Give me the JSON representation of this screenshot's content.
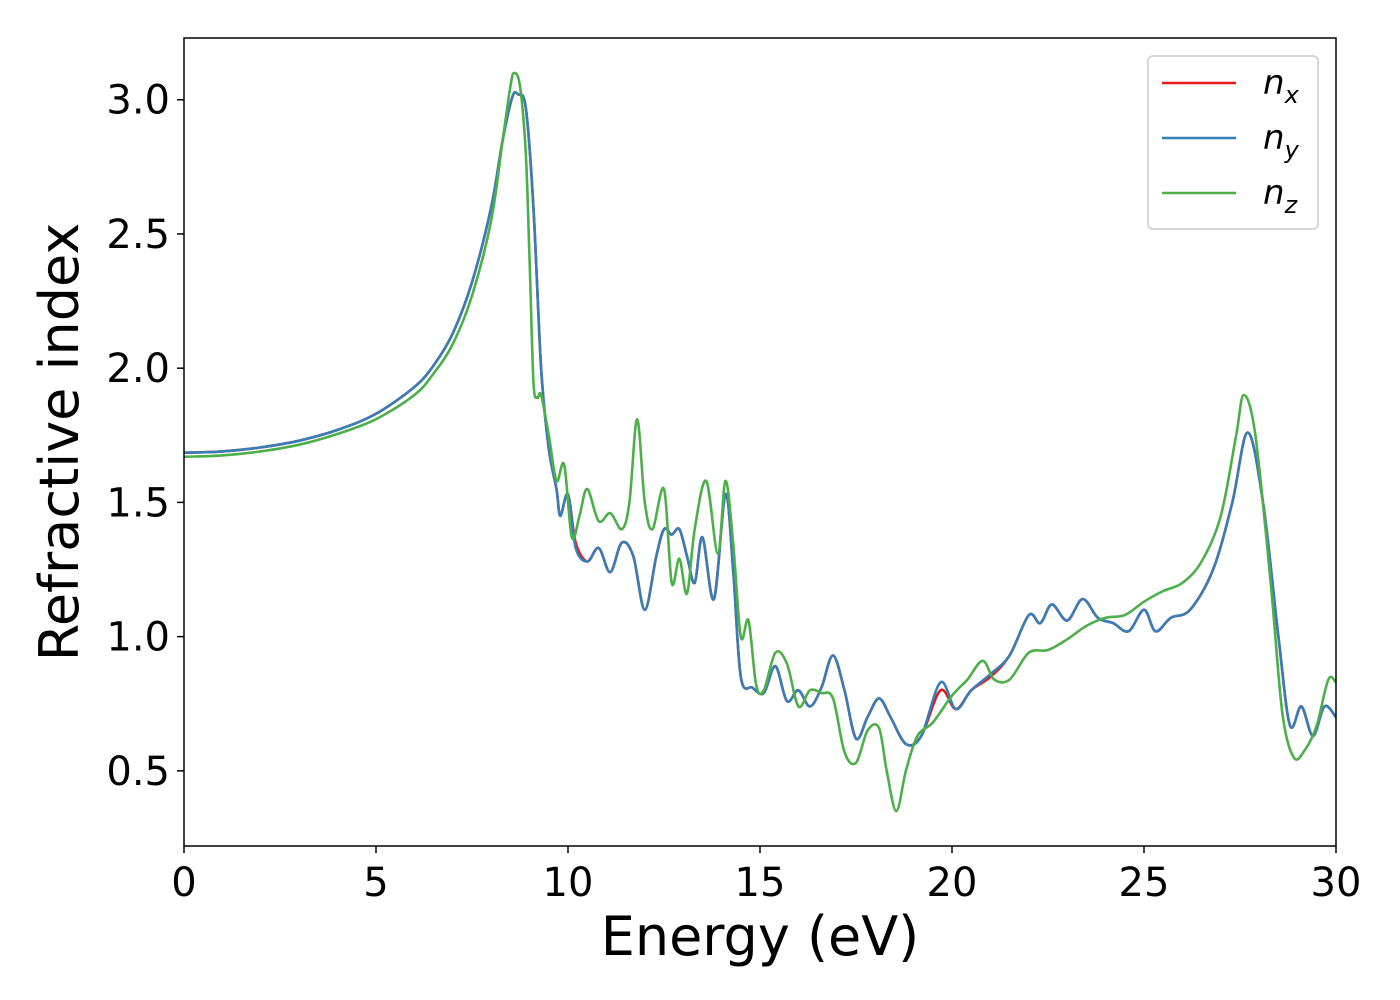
{
  "chart_data": {
    "type": "line",
    "xlabel": "Energy (eV)",
    "ylabel": "Refractive index",
    "xlim": [
      0,
      30
    ],
    "ylim": [
      0.22,
      3.23
    ],
    "xticks": [
      0,
      5,
      10,
      15,
      20,
      25,
      30
    ],
    "xtick_labels": [
      "0",
      "5",
      "10",
      "15",
      "20",
      "25",
      "30"
    ],
    "yticks": [
      0.5,
      1.0,
      1.5,
      2.0,
      2.5,
      3.0
    ],
    "ytick_labels": [
      "0.5",
      "1.0",
      "1.5",
      "2.0",
      "2.5",
      "3.0"
    ],
    "grid": false,
    "legend_position": "top-right",
    "series": [
      {
        "name": "n",
        "subscript": "x",
        "color": "#e41a1c",
        "points": [
          [
            0,
            1.685
          ],
          [
            1,
            1.69
          ],
          [
            2,
            1.705
          ],
          [
            3,
            1.73
          ],
          [
            4,
            1.77
          ],
          [
            5,
            1.83
          ],
          [
            6,
            1.93
          ],
          [
            6.5,
            2.01
          ],
          [
            7,
            2.13
          ],
          [
            7.5,
            2.32
          ],
          [
            8,
            2.6
          ],
          [
            8.3,
            2.85
          ],
          [
            8.55,
            3.01
          ],
          [
            8.7,
            3.02
          ],
          [
            8.9,
            2.97
          ],
          [
            9.1,
            2.6
          ],
          [
            9.3,
            2.0
          ],
          [
            9.5,
            1.7
          ],
          [
            9.7,
            1.55
          ],
          [
            9.8,
            1.45
          ],
          [
            10,
            1.53
          ],
          [
            10.2,
            1.35
          ],
          [
            10.5,
            1.28
          ],
          [
            10.8,
            1.33
          ],
          [
            11.1,
            1.24
          ],
          [
            11.4,
            1.35
          ],
          [
            11.7,
            1.3
          ],
          [
            12,
            1.1
          ],
          [
            12.3,
            1.3
          ],
          [
            12.5,
            1.4
          ],
          [
            12.7,
            1.38
          ],
          [
            12.9,
            1.4
          ],
          [
            13.1,
            1.3
          ],
          [
            13.3,
            1.2
          ],
          [
            13.5,
            1.37
          ],
          [
            13.8,
            1.14
          ],
          [
            14.1,
            1.53
          ],
          [
            14.3,
            1.25
          ],
          [
            14.5,
            0.85
          ],
          [
            14.8,
            0.81
          ],
          [
            15.1,
            0.79
          ],
          [
            15.4,
            0.89
          ],
          [
            15.7,
            0.76
          ],
          [
            16,
            0.8
          ],
          [
            16.3,
            0.74
          ],
          [
            16.6,
            0.81
          ],
          [
            16.9,
            0.93
          ],
          [
            17.2,
            0.8
          ],
          [
            17.5,
            0.62
          ],
          [
            17.8,
            0.7
          ],
          [
            18.1,
            0.77
          ],
          [
            18.4,
            0.7
          ],
          [
            18.8,
            0.6
          ],
          [
            19.2,
            0.63
          ],
          [
            19.7,
            0.8
          ],
          [
            20.1,
            0.73
          ],
          [
            20.5,
            0.8
          ],
          [
            21,
            0.85
          ],
          [
            21.5,
            0.93
          ],
          [
            22,
            1.08
          ],
          [
            22.3,
            1.05
          ],
          [
            22.6,
            1.12
          ],
          [
            23,
            1.06
          ],
          [
            23.4,
            1.14
          ],
          [
            23.8,
            1.07
          ],
          [
            24.2,
            1.05
          ],
          [
            24.6,
            1.02
          ],
          [
            25,
            1.1
          ],
          [
            25.3,
            1.02
          ],
          [
            25.7,
            1.07
          ],
          [
            26.2,
            1.1
          ],
          [
            26.8,
            1.25
          ],
          [
            27.3,
            1.5
          ],
          [
            27.7,
            1.76
          ],
          [
            28.1,
            1.5
          ],
          [
            28.5,
            1.0
          ],
          [
            28.8,
            0.67
          ],
          [
            29.1,
            0.74
          ],
          [
            29.4,
            0.63
          ],
          [
            29.7,
            0.74
          ],
          [
            30,
            0.7
          ]
        ]
      },
      {
        "name": "n",
        "subscript": "y",
        "color": "#377eb8",
        "points": [
          [
            0,
            1.685
          ],
          [
            1,
            1.69
          ],
          [
            2,
            1.705
          ],
          [
            3,
            1.73
          ],
          [
            4,
            1.77
          ],
          [
            5,
            1.83
          ],
          [
            6,
            1.93
          ],
          [
            6.5,
            2.01
          ],
          [
            7,
            2.13
          ],
          [
            7.5,
            2.32
          ],
          [
            8,
            2.6
          ],
          [
            8.3,
            2.85
          ],
          [
            8.55,
            3.01
          ],
          [
            8.7,
            3.02
          ],
          [
            8.9,
            2.97
          ],
          [
            9.1,
            2.6
          ],
          [
            9.3,
            2.0
          ],
          [
            9.5,
            1.7
          ],
          [
            9.7,
            1.55
          ],
          [
            9.8,
            1.45
          ],
          [
            10,
            1.53
          ],
          [
            10.2,
            1.33
          ],
          [
            10.5,
            1.28
          ],
          [
            10.8,
            1.33
          ],
          [
            11.1,
            1.24
          ],
          [
            11.4,
            1.35
          ],
          [
            11.7,
            1.3
          ],
          [
            12,
            1.1
          ],
          [
            12.3,
            1.3
          ],
          [
            12.5,
            1.4
          ],
          [
            12.7,
            1.38
          ],
          [
            12.9,
            1.4
          ],
          [
            13.1,
            1.3
          ],
          [
            13.3,
            1.2
          ],
          [
            13.5,
            1.37
          ],
          [
            13.8,
            1.14
          ],
          [
            14.1,
            1.53
          ],
          [
            14.3,
            1.25
          ],
          [
            14.5,
            0.85
          ],
          [
            14.8,
            0.81
          ],
          [
            15.1,
            0.79
          ],
          [
            15.4,
            0.89
          ],
          [
            15.7,
            0.76
          ],
          [
            16,
            0.8
          ],
          [
            16.3,
            0.74
          ],
          [
            16.6,
            0.81
          ],
          [
            16.9,
            0.93
          ],
          [
            17.2,
            0.8
          ],
          [
            17.5,
            0.62
          ],
          [
            17.8,
            0.7
          ],
          [
            18.1,
            0.77
          ],
          [
            18.4,
            0.7
          ],
          [
            18.8,
            0.6
          ],
          [
            19.2,
            0.63
          ],
          [
            19.7,
            0.83
          ],
          [
            20.1,
            0.73
          ],
          [
            20.5,
            0.8
          ],
          [
            21,
            0.86
          ],
          [
            21.5,
            0.93
          ],
          [
            22,
            1.08
          ],
          [
            22.3,
            1.05
          ],
          [
            22.6,
            1.12
          ],
          [
            23,
            1.06
          ],
          [
            23.4,
            1.14
          ],
          [
            23.8,
            1.07
          ],
          [
            24.2,
            1.05
          ],
          [
            24.6,
            1.02
          ],
          [
            25,
            1.1
          ],
          [
            25.3,
            1.02
          ],
          [
            25.7,
            1.07
          ],
          [
            26.2,
            1.1
          ],
          [
            26.8,
            1.25
          ],
          [
            27.3,
            1.5
          ],
          [
            27.7,
            1.76
          ],
          [
            28.1,
            1.5
          ],
          [
            28.5,
            1.0
          ],
          [
            28.8,
            0.67
          ],
          [
            29.1,
            0.74
          ],
          [
            29.4,
            0.63
          ],
          [
            29.7,
            0.74
          ],
          [
            30,
            0.7
          ]
        ]
      },
      {
        "name": "n",
        "subscript": "z",
        "color": "#4daf4a",
        "points": [
          [
            0,
            1.67
          ],
          [
            1,
            1.675
          ],
          [
            2,
            1.69
          ],
          [
            3,
            1.715
          ],
          [
            4,
            1.755
          ],
          [
            5,
            1.81
          ],
          [
            6,
            1.9
          ],
          [
            6.5,
            1.98
          ],
          [
            7,
            2.09
          ],
          [
            7.5,
            2.27
          ],
          [
            8,
            2.55
          ],
          [
            8.3,
            2.85
          ],
          [
            8.5,
            3.05
          ],
          [
            8.6,
            3.1
          ],
          [
            8.75,
            3.05
          ],
          [
            8.9,
            2.8
          ],
          [
            9.0,
            2.4
          ],
          [
            9.1,
            1.95
          ],
          [
            9.2,
            1.89
          ],
          [
            9.3,
            1.9
          ],
          [
            9.5,
            1.75
          ],
          [
            9.7,
            1.58
          ],
          [
            9.9,
            1.64
          ],
          [
            10.1,
            1.37
          ],
          [
            10.3,
            1.45
          ],
          [
            10.5,
            1.55
          ],
          [
            10.8,
            1.43
          ],
          [
            11.1,
            1.46
          ],
          [
            11.4,
            1.4
          ],
          [
            11.6,
            1.5
          ],
          [
            11.8,
            1.81
          ],
          [
            12.0,
            1.5
          ],
          [
            12.2,
            1.4
          ],
          [
            12.5,
            1.55
          ],
          [
            12.7,
            1.2
          ],
          [
            12.9,
            1.29
          ],
          [
            13.1,
            1.16
          ],
          [
            13.3,
            1.4
          ],
          [
            13.6,
            1.58
          ],
          [
            13.9,
            1.31
          ],
          [
            14.1,
            1.58
          ],
          [
            14.3,
            1.35
          ],
          [
            14.5,
            1.0
          ],
          [
            14.7,
            1.06
          ],
          [
            14.9,
            0.82
          ],
          [
            15.1,
            0.8
          ],
          [
            15.4,
            0.94
          ],
          [
            15.7,
            0.9
          ],
          [
            16.0,
            0.74
          ],
          [
            16.3,
            0.8
          ],
          [
            16.6,
            0.79
          ],
          [
            16.9,
            0.77
          ],
          [
            17.2,
            0.57
          ],
          [
            17.5,
            0.53
          ],
          [
            17.8,
            0.65
          ],
          [
            18.1,
            0.66
          ],
          [
            18.3,
            0.5
          ],
          [
            18.55,
            0.35
          ],
          [
            18.8,
            0.5
          ],
          [
            19.1,
            0.63
          ],
          [
            19.5,
            0.68
          ],
          [
            20,
            0.78
          ],
          [
            20.4,
            0.84
          ],
          [
            20.8,
            0.91
          ],
          [
            21.1,
            0.84
          ],
          [
            21.5,
            0.84
          ],
          [
            22,
            0.94
          ],
          [
            22.5,
            0.95
          ],
          [
            23,
            0.99
          ],
          [
            23.5,
            1.04
          ],
          [
            24,
            1.07
          ],
          [
            24.5,
            1.08
          ],
          [
            25,
            1.13
          ],
          [
            25.5,
            1.17
          ],
          [
            26,
            1.2
          ],
          [
            26.5,
            1.28
          ],
          [
            27,
            1.45
          ],
          [
            27.4,
            1.75
          ],
          [
            27.6,
            1.9
          ],
          [
            27.9,
            1.75
          ],
          [
            28.3,
            1.2
          ],
          [
            28.6,
            0.72
          ],
          [
            28.9,
            0.55
          ],
          [
            29.2,
            0.58
          ],
          [
            29.5,
            0.67
          ],
          [
            29.8,
            0.84
          ],
          [
            30,
            0.83
          ]
        ]
      }
    ]
  }
}
